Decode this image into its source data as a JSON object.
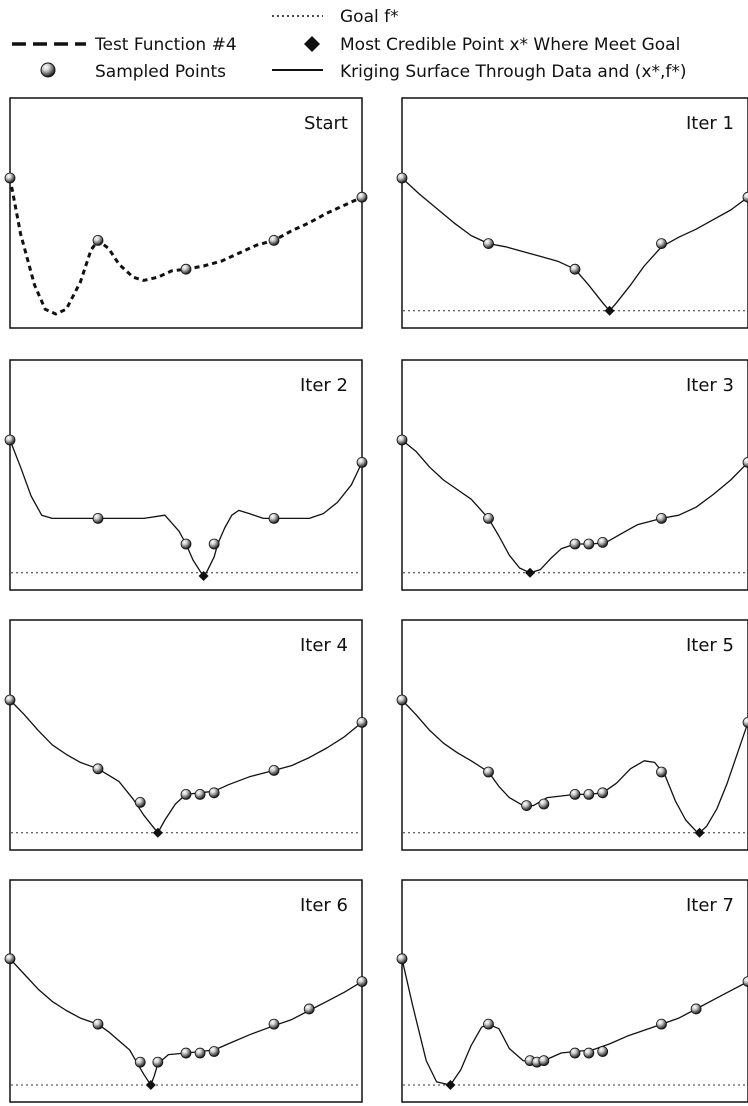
{
  "legend": {
    "goal": "Goal f*",
    "test_function": "Test Function #4",
    "most_credible": "Most Credible Point x* Where Meet Goal",
    "sampled": "Sampled Points",
    "kriging": "Kriging Surface Through Data and (x*,f*)"
  },
  "chart_data": [
    {
      "type": "line",
      "title": "Start",
      "goal_shown": false,
      "curve_series": "Test Function #4",
      "curve": [
        [
          0.0,
          0.15
        ],
        [
          0.03,
          0.5
        ],
        [
          0.07,
          0.82
        ],
        [
          0.1,
          0.97
        ],
        [
          0.13,
          1.0
        ],
        [
          0.16,
          0.97
        ],
        [
          0.2,
          0.8
        ],
        [
          0.23,
          0.6
        ],
        [
          0.25,
          0.54
        ],
        [
          0.28,
          0.59
        ],
        [
          0.31,
          0.69
        ],
        [
          0.35,
          0.77
        ],
        [
          0.38,
          0.79
        ],
        [
          0.42,
          0.77
        ],
        [
          0.46,
          0.73
        ],
        [
          0.5,
          0.72
        ],
        [
          0.55,
          0.7
        ],
        [
          0.6,
          0.67
        ],
        [
          0.65,
          0.62
        ],
        [
          0.7,
          0.57
        ],
        [
          0.75,
          0.54
        ],
        [
          0.8,
          0.48
        ],
        [
          0.85,
          0.43
        ],
        [
          0.9,
          0.37
        ],
        [
          0.95,
          0.32
        ],
        [
          1.0,
          0.27
        ]
      ],
      "sampled_points": [
        [
          0.0,
          0.15
        ],
        [
          0.25,
          0.54
        ],
        [
          0.5,
          0.72
        ],
        [
          0.75,
          0.54
        ],
        [
          1.0,
          0.27
        ]
      ],
      "credible_point": null
    },
    {
      "type": "line",
      "title": "Iter 1",
      "goal_shown": true,
      "curve_series": "Kriging Surface Through Data and (x*,f*)",
      "curve": [
        [
          0.0,
          0.15
        ],
        [
          0.05,
          0.25
        ],
        [
          0.1,
          0.34
        ],
        [
          0.15,
          0.43
        ],
        [
          0.2,
          0.51
        ],
        [
          0.25,
          0.56
        ],
        [
          0.3,
          0.58
        ],
        [
          0.35,
          0.61
        ],
        [
          0.4,
          0.64
        ],
        [
          0.45,
          0.67
        ],
        [
          0.5,
          0.72
        ],
        [
          0.54,
          0.82
        ],
        [
          0.58,
          0.93
        ],
        [
          0.6,
          0.98
        ],
        [
          0.62,
          0.93
        ],
        [
          0.66,
          0.82
        ],
        [
          0.7,
          0.7
        ],
        [
          0.75,
          0.58
        ],
        [
          0.8,
          0.52
        ],
        [
          0.85,
          0.47
        ],
        [
          0.9,
          0.41
        ],
        [
          0.95,
          0.35
        ],
        [
          1.0,
          0.27
        ]
      ],
      "sampled_points": [
        [
          0.0,
          0.15
        ],
        [
          0.25,
          0.56
        ],
        [
          0.5,
          0.72
        ],
        [
          0.75,
          0.56
        ],
        [
          1.0,
          0.27
        ]
      ],
      "credible_point": [
        0.6,
        0.98
      ]
    },
    {
      "type": "line",
      "title": "Iter 2",
      "goal_shown": true,
      "curve_series": "Kriging Surface Through Data and (x*,f*)",
      "curve": [
        [
          0.0,
          0.15
        ],
        [
          0.03,
          0.32
        ],
        [
          0.06,
          0.5
        ],
        [
          0.09,
          0.62
        ],
        [
          0.12,
          0.64
        ],
        [
          0.18,
          0.64
        ],
        [
          0.25,
          0.64
        ],
        [
          0.32,
          0.64
        ],
        [
          0.38,
          0.64
        ],
        [
          0.44,
          0.62
        ],
        [
          0.48,
          0.72
        ],
        [
          0.5,
          0.8
        ],
        [
          0.52,
          0.9
        ],
        [
          0.54,
          0.97
        ],
        [
          0.55,
          1.0
        ],
        [
          0.56,
          0.97
        ],
        [
          0.58,
          0.88
        ],
        [
          0.59,
          0.8
        ],
        [
          0.61,
          0.7
        ],
        [
          0.63,
          0.62
        ],
        [
          0.65,
          0.59
        ],
        [
          0.68,
          0.61
        ],
        [
          0.72,
          0.64
        ],
        [
          0.75,
          0.64
        ],
        [
          0.8,
          0.64
        ],
        [
          0.85,
          0.64
        ],
        [
          0.89,
          0.61
        ],
        [
          0.93,
          0.54
        ],
        [
          0.97,
          0.43
        ],
        [
          1.0,
          0.29
        ]
      ],
      "sampled_points": [
        [
          0.0,
          0.15
        ],
        [
          0.25,
          0.64
        ],
        [
          0.5,
          0.8
        ],
        [
          0.58,
          0.8
        ],
        [
          0.75,
          0.64
        ],
        [
          1.0,
          0.29
        ]
      ],
      "credible_point": [
        0.55,
        1.0
      ]
    },
    {
      "type": "line",
      "title": "Iter 3",
      "goal_shown": true,
      "curve_series": "Kriging Surface Through Data and (x*,f*)",
      "curve": [
        [
          0.0,
          0.15
        ],
        [
          0.04,
          0.22
        ],
        [
          0.08,
          0.32
        ],
        [
          0.12,
          0.4
        ],
        [
          0.16,
          0.46
        ],
        [
          0.2,
          0.52
        ],
        [
          0.25,
          0.64
        ],
        [
          0.28,
          0.75
        ],
        [
          0.31,
          0.87
        ],
        [
          0.34,
          0.95
        ],
        [
          0.37,
          0.98
        ],
        [
          0.4,
          0.96
        ],
        [
          0.43,
          0.89
        ],
        [
          0.46,
          0.83
        ],
        [
          0.5,
          0.8
        ],
        [
          0.55,
          0.8
        ],
        [
          0.59,
          0.79
        ],
        [
          0.63,
          0.74
        ],
        [
          0.68,
          0.68
        ],
        [
          0.75,
          0.64
        ],
        [
          0.8,
          0.62
        ],
        [
          0.85,
          0.57
        ],
        [
          0.9,
          0.49
        ],
        [
          0.95,
          0.4
        ],
        [
          1.0,
          0.29
        ]
      ],
      "sampled_points": [
        [
          0.0,
          0.15
        ],
        [
          0.25,
          0.64
        ],
        [
          0.5,
          0.8
        ],
        [
          0.54,
          0.8
        ],
        [
          0.58,
          0.79
        ],
        [
          0.75,
          0.64
        ],
        [
          1.0,
          0.29
        ]
      ],
      "credible_point": [
        0.37,
        0.98
      ]
    },
    {
      "type": "line",
      "title": "Iter 4",
      "goal_shown": true,
      "curve_series": "Kriging Surface Through Data and (x*,f*)",
      "curve": [
        [
          0.0,
          0.15
        ],
        [
          0.04,
          0.24
        ],
        [
          0.08,
          0.34
        ],
        [
          0.12,
          0.43
        ],
        [
          0.16,
          0.49
        ],
        [
          0.2,
          0.54
        ],
        [
          0.25,
          0.58
        ],
        [
          0.28,
          0.62
        ],
        [
          0.31,
          0.66
        ],
        [
          0.35,
          0.77
        ],
        [
          0.38,
          0.87
        ],
        [
          0.42,
          0.98
        ],
        [
          0.44,
          0.9
        ],
        [
          0.47,
          0.8
        ],
        [
          0.5,
          0.74
        ],
        [
          0.54,
          0.73
        ],
        [
          0.58,
          0.72
        ],
        [
          0.62,
          0.68
        ],
        [
          0.68,
          0.63
        ],
        [
          0.75,
          0.59
        ],
        [
          0.8,
          0.56
        ],
        [
          0.85,
          0.51
        ],
        [
          0.9,
          0.45
        ],
        [
          0.95,
          0.38
        ],
        [
          1.0,
          0.29
        ]
      ],
      "sampled_points": [
        [
          0.0,
          0.15
        ],
        [
          0.25,
          0.58
        ],
        [
          0.37,
          0.79
        ],
        [
          0.5,
          0.74
        ],
        [
          0.54,
          0.74
        ],
        [
          0.58,
          0.73
        ],
        [
          0.75,
          0.59
        ],
        [
          1.0,
          0.29
        ]
      ],
      "credible_point": [
        0.42,
        0.98
      ]
    },
    {
      "type": "line",
      "title": "Iter 5",
      "goal_shown": true,
      "curve_series": "Kriging Surface Through Data and (x*,f*)",
      "curve": [
        [
          0.0,
          0.15
        ],
        [
          0.04,
          0.24
        ],
        [
          0.08,
          0.34
        ],
        [
          0.12,
          0.42
        ],
        [
          0.16,
          0.48
        ],
        [
          0.2,
          0.53
        ],
        [
          0.25,
          0.6
        ],
        [
          0.28,
          0.69
        ],
        [
          0.31,
          0.76
        ],
        [
          0.35,
          0.81
        ],
        [
          0.38,
          0.81
        ],
        [
          0.42,
          0.76
        ],
        [
          0.46,
          0.75
        ],
        [
          0.5,
          0.74
        ],
        [
          0.54,
          0.74
        ],
        [
          0.58,
          0.73
        ],
        [
          0.62,
          0.67
        ],
        [
          0.66,
          0.58
        ],
        [
          0.7,
          0.53
        ],
        [
          0.73,
          0.54
        ],
        [
          0.76,
          0.62
        ],
        [
          0.79,
          0.78
        ],
        [
          0.82,
          0.9
        ],
        [
          0.85,
          0.97
        ],
        [
          0.86,
          0.98
        ],
        [
          0.88,
          0.94
        ],
        [
          0.91,
          0.83
        ],
        [
          0.94,
          0.67
        ],
        [
          0.97,
          0.48
        ],
        [
          1.0,
          0.29
        ]
      ],
      "sampled_points": [
        [
          0.0,
          0.15
        ],
        [
          0.25,
          0.6
        ],
        [
          0.36,
          0.81
        ],
        [
          0.41,
          0.8
        ],
        [
          0.5,
          0.74
        ],
        [
          0.54,
          0.74
        ],
        [
          0.58,
          0.73
        ],
        [
          0.75,
          0.6
        ],
        [
          1.0,
          0.29
        ]
      ],
      "credible_point": [
        0.86,
        0.98
      ]
    },
    {
      "type": "line",
      "title": "Iter 6",
      "goal_shown": true,
      "curve_series": "Kriging Surface Through Data and (x*,f*)",
      "curve": [
        [
          0.0,
          0.15
        ],
        [
          0.04,
          0.25
        ],
        [
          0.08,
          0.35
        ],
        [
          0.12,
          0.43
        ],
        [
          0.16,
          0.49
        ],
        [
          0.2,
          0.54
        ],
        [
          0.25,
          0.58
        ],
        [
          0.28,
          0.63
        ],
        [
          0.31,
          0.69
        ],
        [
          0.34,
          0.75
        ],
        [
          0.36,
          0.83
        ],
        [
          0.38,
          0.91
        ],
        [
          0.4,
          0.98
        ],
        [
          0.41,
          0.92
        ],
        [
          0.42,
          0.84
        ],
        [
          0.45,
          0.78
        ],
        [
          0.5,
          0.77
        ],
        [
          0.54,
          0.76
        ],
        [
          0.58,
          0.75
        ],
        [
          0.62,
          0.71
        ],
        [
          0.68,
          0.65
        ],
        [
          0.75,
          0.59
        ],
        [
          0.8,
          0.55
        ],
        [
          0.85,
          0.49
        ],
        [
          0.9,
          0.43
        ],
        [
          0.95,
          0.37
        ],
        [
          1.0,
          0.3
        ]
      ],
      "sampled_points": [
        [
          0.0,
          0.15
        ],
        [
          0.25,
          0.58
        ],
        [
          0.37,
          0.83
        ],
        [
          0.42,
          0.83
        ],
        [
          0.5,
          0.77
        ],
        [
          0.54,
          0.77
        ],
        [
          0.58,
          0.76
        ],
        [
          0.75,
          0.58
        ],
        [
          0.85,
          0.48
        ],
        [
          1.0,
          0.3
        ]
      ],
      "credible_point": [
        0.4,
        0.98
      ]
    },
    {
      "type": "line",
      "title": "Iter 7",
      "goal_shown": true,
      "curve_series": "Kriging Surface Through Data and (x*,f*)",
      "curve": [
        [
          0.0,
          0.15
        ],
        [
          0.03,
          0.45
        ],
        [
          0.07,
          0.82
        ],
        [
          0.1,
          0.96
        ],
        [
          0.14,
          0.98
        ],
        [
          0.17,
          0.88
        ],
        [
          0.2,
          0.72
        ],
        [
          0.23,
          0.6
        ],
        [
          0.25,
          0.58
        ],
        [
          0.28,
          0.61
        ],
        [
          0.31,
          0.74
        ],
        [
          0.35,
          0.82
        ],
        [
          0.38,
          0.83
        ],
        [
          0.42,
          0.81
        ],
        [
          0.46,
          0.77
        ],
        [
          0.5,
          0.76
        ],
        [
          0.55,
          0.75
        ],
        [
          0.6,
          0.71
        ],
        [
          0.65,
          0.66
        ],
        [
          0.7,
          0.62
        ],
        [
          0.75,
          0.58
        ],
        [
          0.8,
          0.54
        ],
        [
          0.85,
          0.48
        ],
        [
          0.9,
          0.42
        ],
        [
          0.95,
          0.36
        ],
        [
          1.0,
          0.3
        ]
      ],
      "sampled_points": [
        [
          0.0,
          0.15
        ],
        [
          0.25,
          0.58
        ],
        [
          0.37,
          0.82
        ],
        [
          0.39,
          0.83
        ],
        [
          0.41,
          0.82
        ],
        [
          0.5,
          0.77
        ],
        [
          0.54,
          0.77
        ],
        [
          0.58,
          0.76
        ],
        [
          0.75,
          0.58
        ],
        [
          0.85,
          0.48
        ],
        [
          1.0,
          0.3
        ]
      ],
      "credible_point": [
        0.14,
        0.98
      ]
    }
  ]
}
